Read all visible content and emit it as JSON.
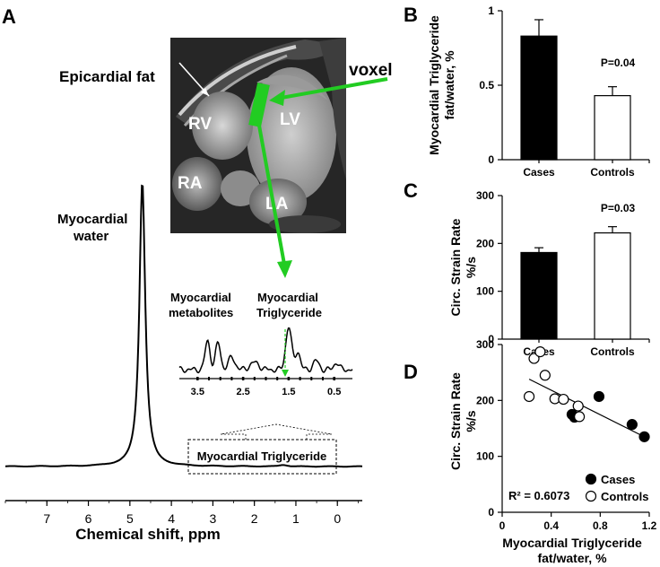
{
  "panel_labels": {
    "a": "A",
    "b": "B",
    "c": "C",
    "d": "D"
  },
  "panel_a": {
    "mri": {
      "labels": {
        "epicardial_fat": "Epicardial fat",
        "rv": "RV",
        "lv": "LV",
        "ra": "RA",
        "la": "LA"
      },
      "voxel_label": "voxel",
      "voxel_color": "#22cc22"
    },
    "water_label": [
      "Myocardial",
      "water"
    ],
    "metabolites_label": [
      "Myocardial",
      "metabolites"
    ],
    "triglyceride_label": [
      "Myocardial",
      "Triglyceride"
    ],
    "box_label": "Myocardial Triglyceride",
    "xlabel": "Chemical shift, ppm",
    "xticks": [
      "7",
      "6",
      "5",
      "4",
      "3",
      "2",
      "1",
      "0"
    ],
    "inset_xticks": [
      "3.5",
      "2.5",
      "1.5",
      "0.5"
    ]
  },
  "chart_data": [
    {
      "panel": "A",
      "type": "line",
      "title": "",
      "xlabel": "Chemical shift, ppm",
      "ylabel": "",
      "xlim": [
        8.0,
        -0.6
      ],
      "x_reversed": true,
      "peaks": [
        {
          "label": "Myocardial water",
          "ppm": 4.7
        },
        {
          "label": "Myocardial Triglyceride",
          "ppm": 1.3
        }
      ],
      "inset": {
        "xlim": [
          3.9,
          0.1
        ],
        "xticks": [
          3.5,
          2.5,
          1.5,
          0.5
        ],
        "peaks_ppm": [
          3.2,
          1.5
        ]
      }
    },
    {
      "panel": "B",
      "type": "bar",
      "categories": [
        "Cases",
        "Controls"
      ],
      "values": [
        0.83,
        0.43
      ],
      "errors": [
        0.11,
        0.06
      ],
      "colors": [
        "#000000",
        "#ffffff"
      ],
      "ylabel": "Myocardial Triglyceride fat/water, %",
      "ylabel_lines": [
        "Myocardial Triglyceride",
        "fat/water, %"
      ],
      "ylim": [
        0,
        1
      ],
      "yticks": [
        "0",
        "0.5",
        "1"
      ],
      "annotation": "P=0.04"
    },
    {
      "panel": "C",
      "type": "bar",
      "categories": [
        "Cases",
        "Controls"
      ],
      "values": [
        181,
        222
      ],
      "errors": [
        10,
        13
      ],
      "colors": [
        "#000000",
        "#ffffff"
      ],
      "ylabel": "Circ. Strain Rate %/s",
      "ylabel_lines": [
        "Circ. Strain Rate",
        "%/s"
      ],
      "ylim": [
        0,
        300
      ],
      "yticks": [
        "0",
        "100",
        "200",
        "300"
      ],
      "annotation": "P=0.03"
    },
    {
      "panel": "D",
      "type": "scatter",
      "xlabel": "Myocardial Triglyceride fat/water, %",
      "xlabel_lines": [
        "Myocardial Triglyceride",
        "fat/water, %"
      ],
      "ylabel": "Circ. Strain Rate %/s",
      "ylabel_lines": [
        "Circ. Strain Rate",
        "%/s"
      ],
      "xlim": [
        0,
        1.2
      ],
      "ylim": [
        0,
        300
      ],
      "xticks": [
        "0",
        "0.4",
        "0.8",
        "1.2"
      ],
      "yticks": [
        "0",
        "100",
        "200",
        "300"
      ],
      "series": [
        {
          "name": "Cases",
          "fill": "#000000",
          "points": [
            [
              0.57,
              175
            ],
            [
              0.59,
              170
            ],
            [
              0.79,
              207
            ],
            [
              1.06,
              157
            ],
            [
              1.16,
              135
            ]
          ]
        },
        {
          "name": "Controls",
          "fill": "#ffffff",
          "points": [
            [
              0.22,
              207
            ],
            [
              0.26,
              275
            ],
            [
              0.31,
              287
            ],
            [
              0.35,
              245
            ],
            [
              0.43,
              203
            ],
            [
              0.5,
              202
            ],
            [
              0.62,
              190
            ],
            [
              0.63,
              171
            ]
          ]
        }
      ],
      "trendline": {
        "x": [
          0.22,
          1.16
        ],
        "y": [
          238,
          135
        ]
      },
      "r2_label": "R² = 0.6073",
      "legend_position": "bottom-right"
    }
  ]
}
